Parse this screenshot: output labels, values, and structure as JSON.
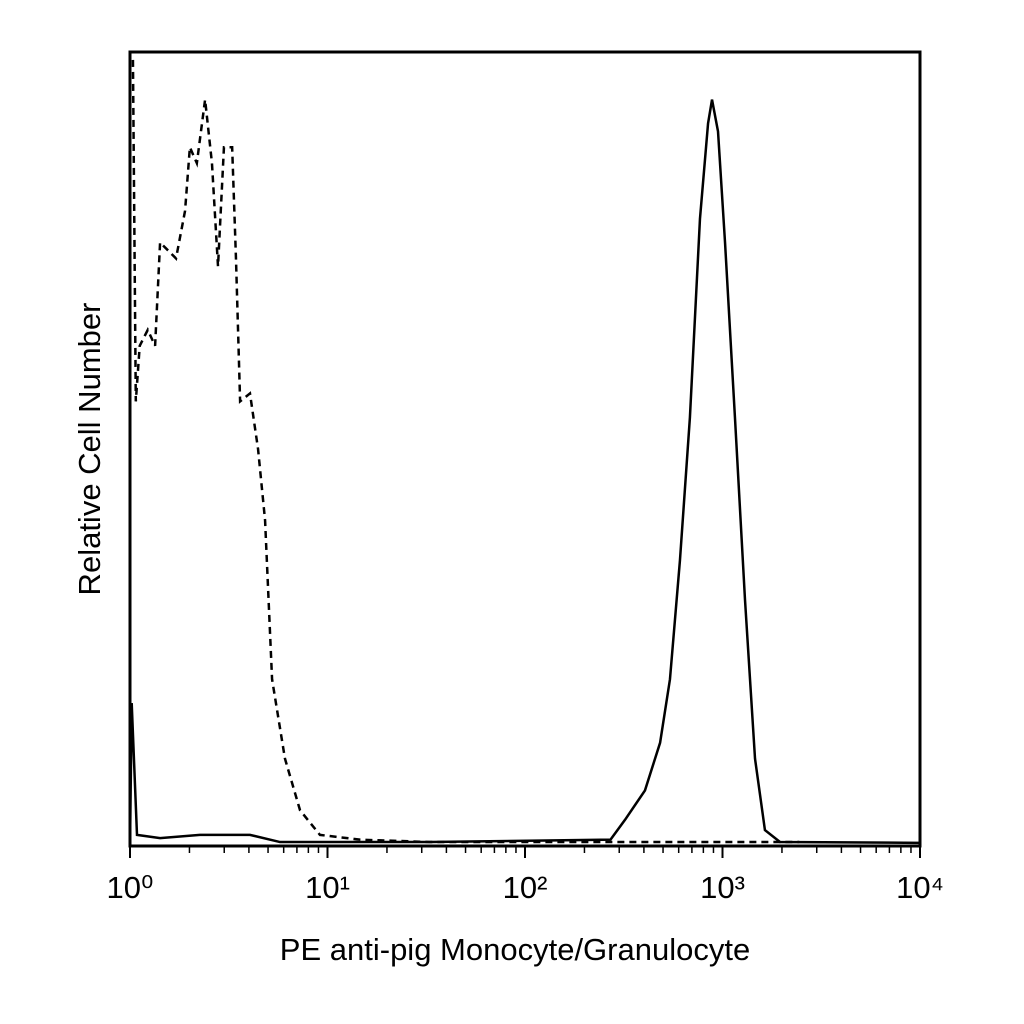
{
  "chart_data": {
    "type": "line",
    "xlabel": "PE anti-pig Monocyte/Granulocyte",
    "ylabel": "Relative Cell Number",
    "xscale": "log",
    "xlim": [
      1,
      10000
    ],
    "xticks": [
      {
        "value": 1,
        "label": "10⁰"
      },
      {
        "value": 10,
        "label": "10¹"
      },
      {
        "value": 100,
        "label": "10²"
      },
      {
        "value": 1000,
        "label": "10³"
      },
      {
        "value": 10000,
        "label": "10⁴"
      }
    ],
    "ylim": [
      0,
      100
    ],
    "series": [
      {
        "color": "#000000",
        "dash": true,
        "x": [
          1.035,
          1.07,
          1.12,
          1.23,
          1.34,
          1.42,
          1.56,
          1.71,
          1.9,
          2.01,
          2.18,
          2.4,
          2.6,
          2.79,
          2.99,
          3.29,
          3.44,
          3.61,
          4.05,
          4.45,
          4.83,
          5.24,
          6.09,
          7.26,
          9.16,
          14.6,
          33,
          240,
          2450
        ],
        "values": [
          99,
          56,
          63,
          65,
          63,
          76,
          75,
          74,
          80,
          88,
          86,
          94,
          86,
          73,
          88,
          88,
          74,
          56,
          57,
          50,
          41,
          21,
          11,
          4.5,
          1.4,
          0.8,
          0.5,
          0.5,
          0.5
        ]
      },
      {
        "color": "#000000",
        "dash": false,
        "x": [
          1.0,
          1.02,
          1.085,
          1.42,
          2.26,
          4.05,
          5.75,
          33,
          271,
          321,
          405,
          483,
          542,
          609,
          684,
          769,
          845,
          885,
          949,
          1030,
          1156,
          1300,
          1461,
          1640,
          1955,
          10000
        ],
        "values": [
          0,
          18,
          1.4,
          1,
          1.4,
          1.4,
          0.5,
          0.5,
          0.8,
          3.3,
          7,
          13,
          21,
          36,
          54,
          79,
          91,
          94,
          90,
          76,
          54,
          31,
          11,
          2,
          0.5,
          0.4
        ]
      }
    ]
  }
}
